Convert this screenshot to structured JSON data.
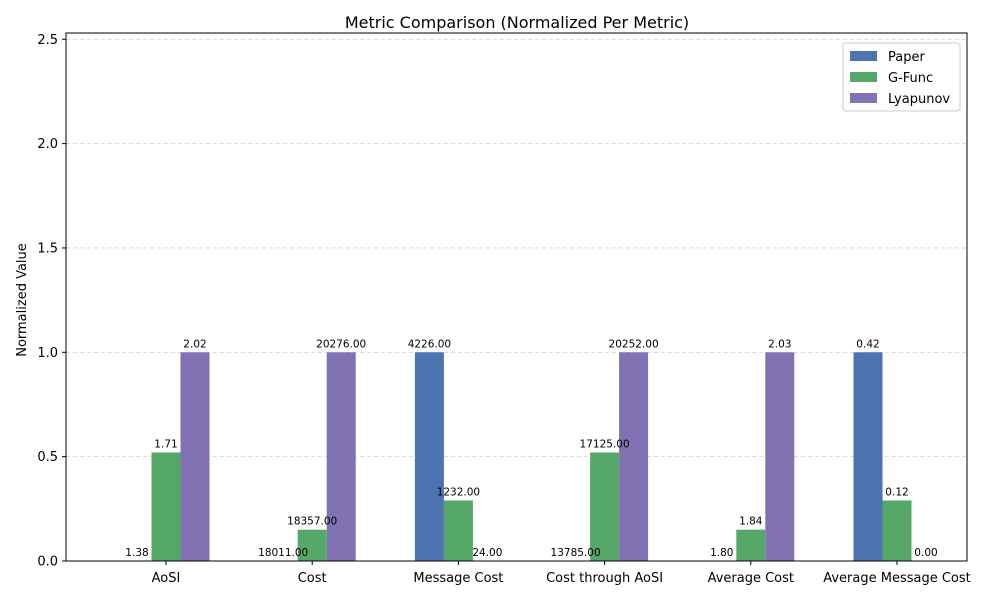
{
  "chart_data": {
    "type": "bar",
    "title": "Metric Comparison (Normalized Per Metric)",
    "xlabel": "",
    "ylabel": "Normalized Value",
    "ylim": [
      0,
      2.53
    ],
    "yticks": [
      0.0,
      0.5,
      1.0,
      1.5,
      2.0,
      2.5
    ],
    "ytick_labels": [
      "0.0",
      "0.5",
      "1.0",
      "1.5",
      "2.0",
      "2.5"
    ],
    "grid": true,
    "legend_position": "top-right",
    "categories": [
      "AoSI",
      "Cost",
      "Message Cost",
      "Cost through AoSI",
      "Average Cost",
      "Average Message Cost"
    ],
    "series": [
      {
        "name": "Paper",
        "color": "#4c72b0",
        "values": [
          0.0,
          0.0,
          1.0,
          0.0,
          0.0,
          1.0
        ],
        "labels": [
          "1.38",
          "18011.00",
          "4226.00",
          "13785.00",
          "1.80",
          "0.42"
        ]
      },
      {
        "name": "G-Func",
        "color": "#55a868",
        "values": [
          0.52,
          0.15,
          0.29,
          0.52,
          0.15,
          0.29
        ],
        "labels": [
          "1.71",
          "18357.00",
          "1232.00",
          "17125.00",
          "1.84",
          "0.12"
        ]
      },
      {
        "name": "Lyapunov",
        "color": "#8172b3",
        "values": [
          1.0,
          1.0,
          0.0,
          1.0,
          1.0,
          0.0
        ],
        "labels": [
          "2.02",
          "20276.00",
          "24.00",
          "20252.00",
          "2.03",
          "0.00"
        ]
      }
    ]
  }
}
